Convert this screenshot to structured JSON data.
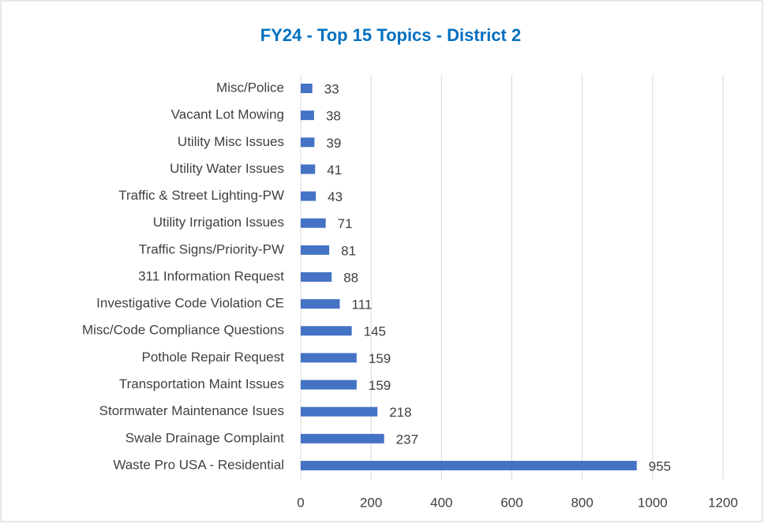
{
  "chart_data": {
    "type": "bar",
    "orientation": "horizontal",
    "title": "FY24 - Top 15 Topics - District 2",
    "categories": [
      "Misc/Police",
      "Vacant Lot Mowing",
      "Utility Misc Issues",
      "Utility Water Issues",
      "Traffic & Street Lighting-PW",
      "Utility Irrigation Issues",
      "Traffic Signs/Priority-PW",
      "311 Information Request",
      "Investigative Code Violation CE",
      "Misc/Code Compliance Questions",
      "Pothole Repair Request",
      "Transportation Maint Issues",
      "Stormwater Maintenance Isues",
      "Swale Drainage Complaint",
      "Waste Pro USA - Residential"
    ],
    "values": [
      33,
      38,
      39,
      41,
      43,
      71,
      81,
      88,
      111,
      145,
      159,
      159,
      218,
      237,
      955
    ],
    "color": "#4472c4",
    "xlim": [
      0,
      1200
    ],
    "xticks": [
      0,
      200,
      400,
      600,
      800,
      1000,
      1200
    ],
    "grid": true
  }
}
